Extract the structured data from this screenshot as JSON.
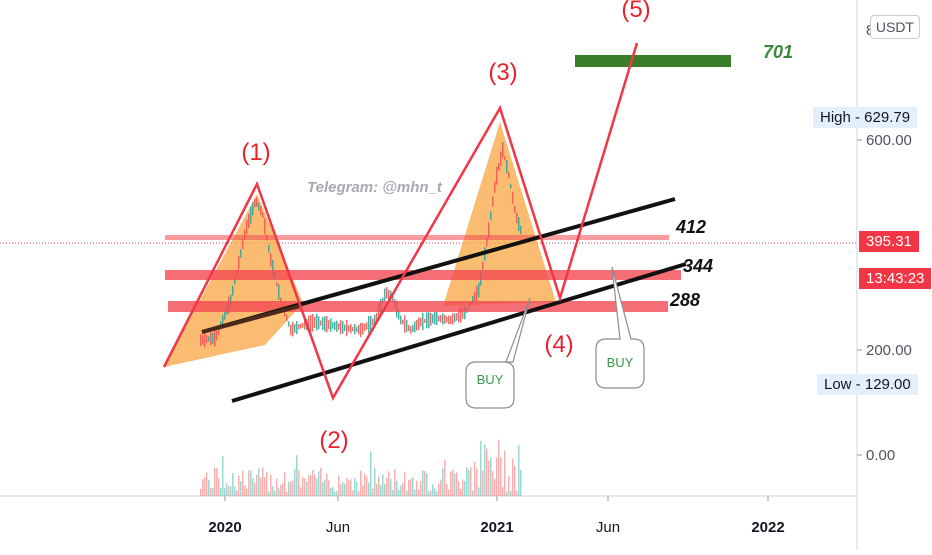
{
  "price_axis": {
    "currency": "USDT",
    "ticks": [
      "0.00",
      "200.00",
      "600.00"
    ],
    "high_label": "High - 629.79",
    "low_label": "Low - 129.00",
    "last_price": "395.31",
    "countdown": "13:43:23",
    "clipped_top_tick": "8"
  },
  "time_axis": {
    "labels": [
      "2020",
      "Jun",
      "2021",
      "Jun",
      "2022"
    ]
  },
  "annotations": {
    "watermark": "Telegram: @mhn_t",
    "wave_1": "(1)",
    "wave_2": "(2)",
    "wave_3": "(3)",
    "wave_4": "(4)",
    "wave_5": "(5)",
    "level_701": "701",
    "level_412": "412",
    "level_344": "344",
    "level_288": "288",
    "buy_1": "BUY",
    "buy_2": "BUY"
  },
  "colors": {
    "wave": "#f23645",
    "zone": "#f7a541",
    "target": "#3a7d2a",
    "level_band": "#f44a52",
    "trend": "#111111",
    "trend_mid": "#4a2a1a",
    "candle_up": "#26a69a",
    "candle_down": "#ef5350"
  },
  "chart_data": {
    "type": "line",
    "y_unit": "USDT",
    "y_ticks": [
      0,
      200,
      600
    ],
    "x_labels": [
      "2020",
      "Jun",
      "2021",
      "Jun",
      "2022"
    ],
    "high": 629.79,
    "low": 129.0,
    "last_price": 395.31,
    "horizontal_levels": [
      701,
      412,
      344,
      288
    ],
    "elliott_wave_points": [
      {
        "label": "(1)",
        "value": 490
      },
      {
        "label": "(2)",
        "value": 120
      },
      {
        "label": "(3)",
        "value": 630
      },
      {
        "label": "(4)",
        "value": 290
      },
      {
        "label": "(5)",
        "value": 760
      }
    ],
    "signals": [
      "BUY",
      "BUY"
    ]
  }
}
